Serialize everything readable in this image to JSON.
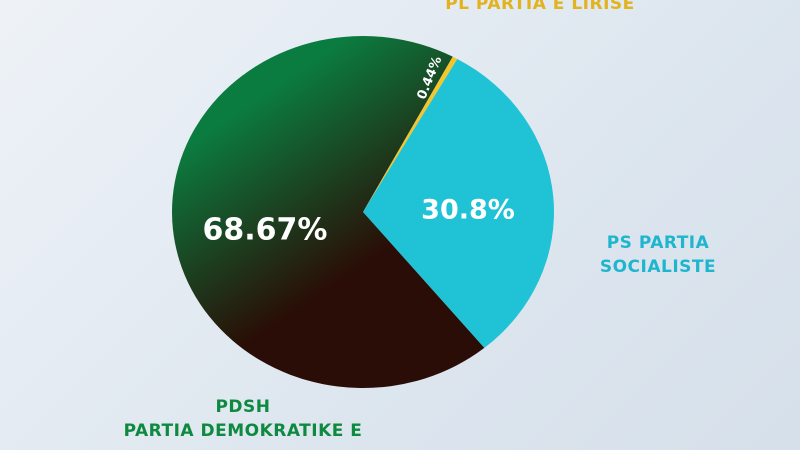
{
  "chart_data": {
    "type": "pie",
    "categories": [
      "PL PARTIA E LIRISË",
      "PS PARTIA\nSOCIALISTE",
      "PDSH\nPARTIA DEMOKRATIKE E"
    ],
    "values": [
      0.44,
      30.8,
      68.67
    ],
    "value_labels": [
      "0.44%",
      "30.8%",
      "68.67%"
    ],
    "colors": [
      "#f3c62c",
      "#20c2d6",
      "#0b7c3f"
    ]
  }
}
